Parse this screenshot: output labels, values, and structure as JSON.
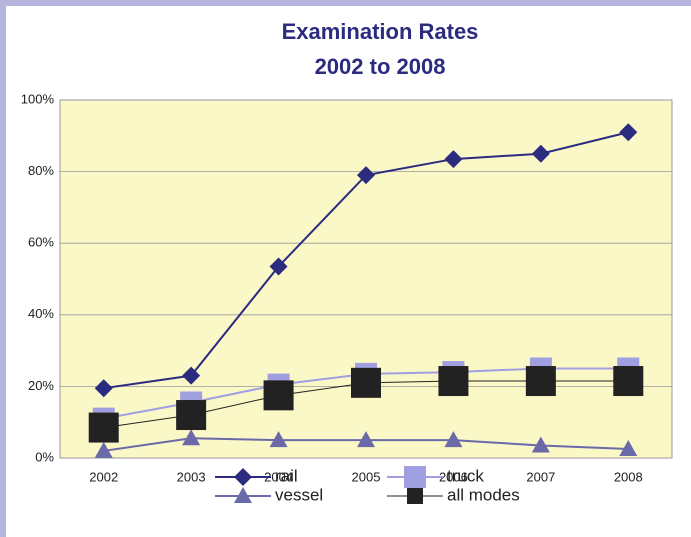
{
  "chart_data": {
    "type": "line",
    "title": "Examination Rates",
    "subtitle": "2002 to 2008",
    "categories": [
      "2002",
      "2003",
      "2004",
      "2005",
      "2006",
      "2007",
      "2008"
    ],
    "series": [
      {
        "name": "rail",
        "color": "#2b2b80",
        "marker": "diamond",
        "values": [
          19.5,
          23,
          53.5,
          79,
          83.5,
          85,
          91
        ]
      },
      {
        "name": "truck",
        "color": "#a0a0e0",
        "marker": "square",
        "values": [
          11,
          15.5,
          20.5,
          23.5,
          24,
          25,
          25
        ]
      },
      {
        "name": "vessel",
        "color": "#6a6aa8",
        "marker": "triangle",
        "values": [
          2,
          5.5,
          5,
          5,
          5,
          3.5,
          2.5
        ]
      },
      {
        "name": "all modes",
        "color": "#222222",
        "marker": "bigsquare",
        "values": [
          8.5,
          12,
          17.5,
          21,
          21.5,
          21.5,
          21.5
        ]
      }
    ],
    "ylim": [
      0,
      100
    ],
    "yticks": [
      {
        "value": 0,
        "label": "0%"
      },
      {
        "value": 20,
        "label": "20%"
      },
      {
        "value": 40,
        "label": "40%"
      },
      {
        "value": 60,
        "label": "60%"
      },
      {
        "value": 80,
        "label": "80%"
      },
      {
        "value": 100,
        "label": "100%"
      }
    ],
    "grid": true
  }
}
